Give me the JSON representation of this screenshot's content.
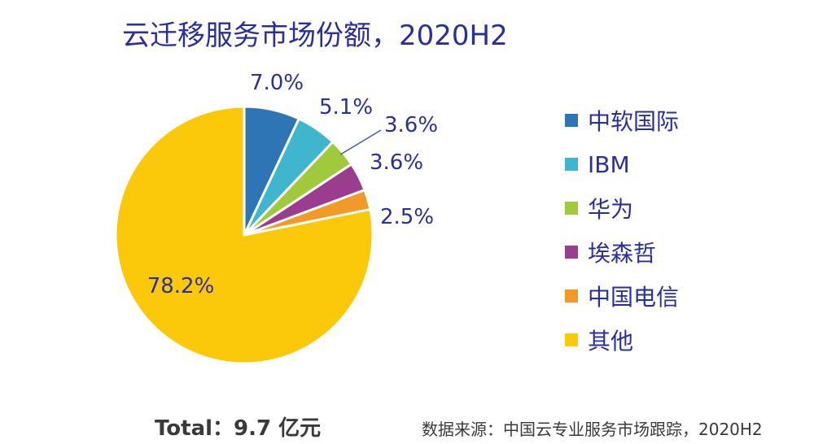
{
  "chart_data": {
    "type": "pie",
    "title": "云迁移服务市场份额，2020H2",
    "slices": [
      {
        "label": "中软国际",
        "value": 7.0,
        "display": "7.0%",
        "color": "#2e75b6"
      },
      {
        "label": "IBM",
        "value": 5.1,
        "display": "5.1%",
        "color": "#3fb6cd"
      },
      {
        "label": "华为",
        "value": 3.6,
        "display": "3.6%",
        "color": "#a0c93c"
      },
      {
        "label": "埃森哲",
        "value": 3.6,
        "display": "3.6%",
        "color": "#9b3d8e"
      },
      {
        "label": "中国电信",
        "value": 2.5,
        "display": "2.5%",
        "color": "#f29a27"
      },
      {
        "label": "其他",
        "value": 78.2,
        "display": "78.2%",
        "color": "#fbc90a"
      }
    ],
    "legend_position": "right"
  },
  "footer": {
    "total": "Total：9.7 亿元",
    "source": "数据来源：中国云专业服务市场跟踪，2020H2"
  }
}
